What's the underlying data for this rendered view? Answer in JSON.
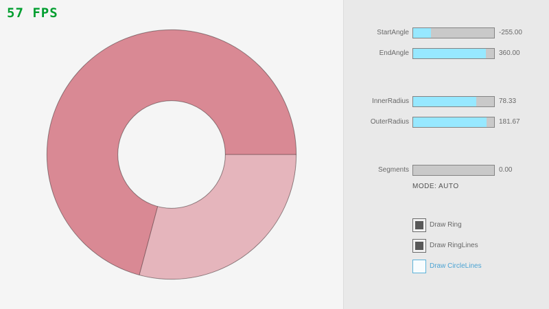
{
  "fps": {
    "text": "57 FPS",
    "color": "#009e2f"
  },
  "ring": {
    "start_angle": -255.0,
    "end_angle": 360.0,
    "inner_radius": 78.33,
    "outer_radius": 181.67,
    "segments": 0.0,
    "color_overlap": "#d98994",
    "color_single": "#e5b5bc",
    "line_color": "rgba(0,0,0,0.4)"
  },
  "panel": {
    "sliders": [
      {
        "label": "StartAngle",
        "value": "-255.00",
        "fill_pct": 21.7
      },
      {
        "label": "EndAngle",
        "value": "360.00",
        "fill_pct": 90
      },
      {
        "label": "InnerRadius",
        "value": "78.33",
        "fill_pct": 78.3
      },
      {
        "label": "OuterRadius",
        "value": "181.67",
        "fill_pct": 90.8
      },
      {
        "label": "Segments",
        "value": "0.00",
        "fill_pct": 0
      }
    ],
    "mode_text": "MODE: AUTO",
    "checkboxes": [
      {
        "label": "Draw Ring",
        "checked": true
      },
      {
        "label": "Draw RingLines",
        "checked": true
      },
      {
        "label": "Draw CircleLines",
        "checked": false
      }
    ]
  }
}
